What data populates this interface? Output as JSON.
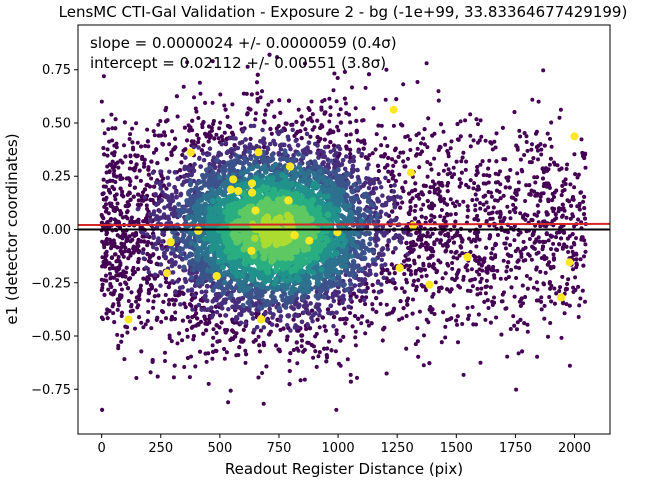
{
  "chart_data": {
    "type": "scatter",
    "title": "LensMC CTI-Gal Validation - Exposure 2 - bg (-1e+99, 33.83364677429199)",
    "xlabel": "Readout Register Distance (pix)",
    "ylabel": "e1 (detector coordinates)",
    "xlim": [
      -100,
      2150
    ],
    "ylim": [
      -0.96,
      0.96
    ],
    "xticks": [
      0,
      250,
      500,
      750,
      1000,
      1250,
      1500,
      1750,
      2000
    ],
    "yticks": [
      -0.75,
      -0.5,
      -0.25,
      0.0,
      0.25,
      0.5,
      0.75
    ],
    "xtick_labels": [
      "0",
      "250",
      "500",
      "750",
      "1000",
      "1250",
      "1500",
      "1750",
      "2000"
    ],
    "ytick_labels": [
      "−0.75",
      "−0.50",
      "−0.25",
      "0.00",
      "0.25",
      "0.50",
      "0.75"
    ],
    "grid": false,
    "colormap": "viridis",
    "annotations": [
      "slope = 0.0000024 +/- 0.0000059 (0.4σ)",
      "intercept = 0.02112 +/- 0.00551 (3.8σ)"
    ],
    "fit_line": {
      "slope": 2.4e-06,
      "intercept": 0.02112,
      "color": "#d62728"
    },
    "zero_line": {
      "y": 0.0,
      "color": "#000000"
    },
    "distribution": {
      "x_range": [
        0,
        2050
      ],
      "dense_x_range": [
        400,
        1050
      ],
      "y_center": 0.0,
      "y_spread": 0.3,
      "approx_point_count": 6000
    }
  }
}
